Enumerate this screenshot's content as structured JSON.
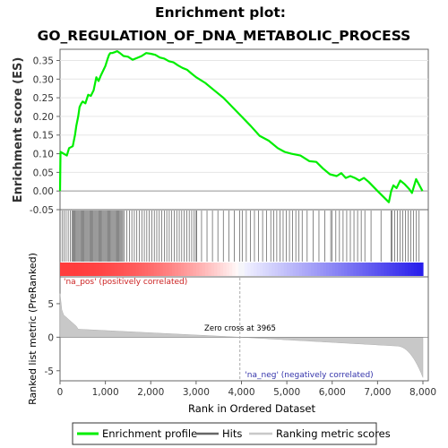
{
  "chart_data": {
    "type": "line",
    "title_line1": "Enrichment plot:",
    "title_line2": "GO_REGULATION_OF_DNA_METABOLIC_PROCESS",
    "es_ylabel": "Enrichment score (ES)",
    "rank_ylabel": "Ranked list metric (PreRanked)",
    "xlabel": "Rank in Ordered Dataset",
    "xlim": [
      0,
      8000
    ],
    "x_ticks": [
      0,
      1000,
      2000,
      3000,
      4000,
      5000,
      6000,
      7000,
      8000
    ],
    "x_tick_labels": [
      "0",
      "1,000",
      "2,000",
      "3,000",
      "4,000",
      "5,000",
      "6,000",
      "7,000",
      "8,000"
    ],
    "es_ylim": [
      -0.05,
      0.38
    ],
    "es_ticks": [
      -0.05,
      0.0,
      0.05,
      0.1,
      0.15,
      0.2,
      0.25,
      0.3,
      0.35
    ],
    "es_tick_labels": [
      "-0.05",
      "0.00",
      "0.05",
      "0.10",
      "0.15",
      "0.20",
      "0.25",
      "0.30",
      "0.35"
    ],
    "rank_ylim": [
      -6.5,
      9
    ],
    "rank_ticks": [
      -5,
      0,
      5
    ],
    "rank_tick_labels": [
      "-5",
      "0",
      "5"
    ],
    "zero_cross_label": "Zero cross at 3965",
    "zero_cross_rank": 3965,
    "pos_label": "'na_pos' (positively correlated)",
    "neg_label": "'na_neg' (negatively correlated)",
    "series": [
      {
        "name": "Enrichment profile",
        "color": "#00ee00",
        "x": [
          0,
          10,
          150,
          200,
          280,
          330,
          360,
          400,
          430,
          470,
          500,
          560,
          620,
          680,
          740,
          800,
          850,
          900,
          960,
          1000,
          1050,
          1080,
          1110,
          1150,
          1200,
          1260,
          1320,
          1400,
          1500,
          1600,
          1700,
          1800,
          1900,
          2000,
          2100,
          2200,
          2300,
          2400,
          2500,
          2600,
          2700,
          2800,
          2900,
          3000,
          3200,
          3400,
          3600,
          3800,
          4000,
          4200,
          4400,
          4600,
          4800,
          4950,
          5100,
          5300,
          5500,
          5650,
          5800,
          5950,
          6100,
          6200,
          6300,
          6400,
          6500,
          6600,
          6700,
          6800,
          7000,
          7250,
          7300,
          7350,
          7420,
          7500,
          7600,
          7700,
          7760,
          7850,
          7990
        ],
        "y": [
          0.0,
          0.105,
          0.095,
          0.115,
          0.12,
          0.15,
          0.175,
          0.2,
          0.225,
          0.235,
          0.24,
          0.235,
          0.258,
          0.255,
          0.27,
          0.305,
          0.295,
          0.31,
          0.325,
          0.335,
          0.355,
          0.365,
          0.37,
          0.37,
          0.372,
          0.375,
          0.37,
          0.362,
          0.36,
          0.352,
          0.357,
          0.362,
          0.37,
          0.368,
          0.365,
          0.358,
          0.355,
          0.348,
          0.345,
          0.337,
          0.33,
          0.325,
          0.315,
          0.305,
          0.29,
          0.27,
          0.25,
          0.225,
          0.2,
          0.175,
          0.148,
          0.135,
          0.115,
          0.105,
          0.1,
          0.095,
          0.08,
          0.078,
          0.06,
          0.045,
          0.04,
          0.048,
          0.035,
          0.04,
          0.035,
          0.028,
          0.035,
          0.025,
          0.0,
          -0.03,
          0.0,
          0.015,
          0.008,
          0.028,
          0.018,
          0.005,
          -0.005,
          0.032,
          0.0
        ]
      }
    ],
    "legend": {
      "placement": "bottom",
      "entries": [
        {
          "label": "Enrichment profile",
          "color": "#00ee00"
        },
        {
          "label": "Hits",
          "color": "#666666"
        },
        {
          "label": "Ranking metric scores",
          "color": "#c8c8c8"
        }
      ]
    }
  }
}
